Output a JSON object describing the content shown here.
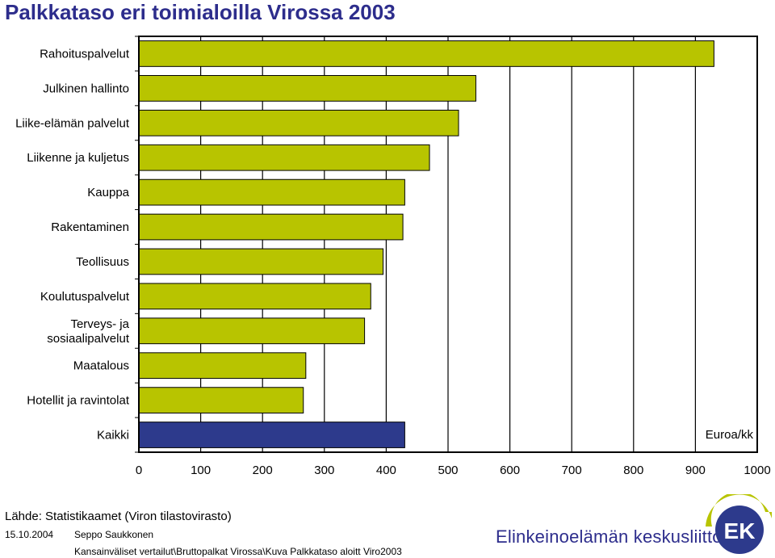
{
  "title": "Palkkataso eri toimialoilla Virossa 2003",
  "chart_data": {
    "type": "bar",
    "orientation": "horizontal",
    "title": "Palkkataso eri toimialoilla Virossa 2003",
    "categories": [
      "Rahoituspalvelut",
      "Julkinen hallinto",
      "Liike-elämän palvelut",
      "Liikenne ja kuljetus",
      "Kauppa",
      "Rakentaminen",
      "Teollisuus",
      "Koulutuspalvelut",
      "Terveys- ja sosiaalipalvelut",
      "Maatalous",
      "Hotellit ja ravintolat",
      "Kaikki"
    ],
    "category_lines": [
      [
        "Rahoituspalvelut"
      ],
      [
        "Julkinen hallinto"
      ],
      [
        "Liike-elämän palvelut"
      ],
      [
        "Liikenne ja kuljetus"
      ],
      [
        "Kauppa"
      ],
      [
        "Rakentaminen"
      ],
      [
        "Teollisuus"
      ],
      [
        "Koulutuspalvelut"
      ],
      [
        "Terveys- ja",
        "sosiaalipalvelut"
      ],
      [
        "Maatalous"
      ],
      [
        "Hotellit ja ravintolat"
      ],
      [
        "Kaikki"
      ]
    ],
    "values": [
      930,
      545,
      517,
      470,
      430,
      427,
      395,
      375,
      365,
      270,
      266,
      430
    ],
    "unit_label": "Euroa/kk",
    "xlim": [
      0,
      1000
    ],
    "xticks": [
      "0",
      "100",
      "200",
      "300",
      "400",
      "500",
      "600",
      "700",
      "800",
      "900",
      "1000"
    ],
    "grid": true,
    "colors": {
      "default": "#b8c400",
      "highlight": "#2d3a8c"
    },
    "highlight_category": "Kaikki"
  },
  "footer": {
    "source": "Lähde: Statistikaamet (Viron tilastovirasto)",
    "date": "15.10.2004",
    "author": "Seppo Saukkonen",
    "path": "Kansainväliset vertailut\\Bruttopalkat Virossa\\Kuva Palkkataso aloitt Viro2003",
    "organization": "Elinkeinoelämän keskusliitto",
    "logo_text": "EK"
  }
}
